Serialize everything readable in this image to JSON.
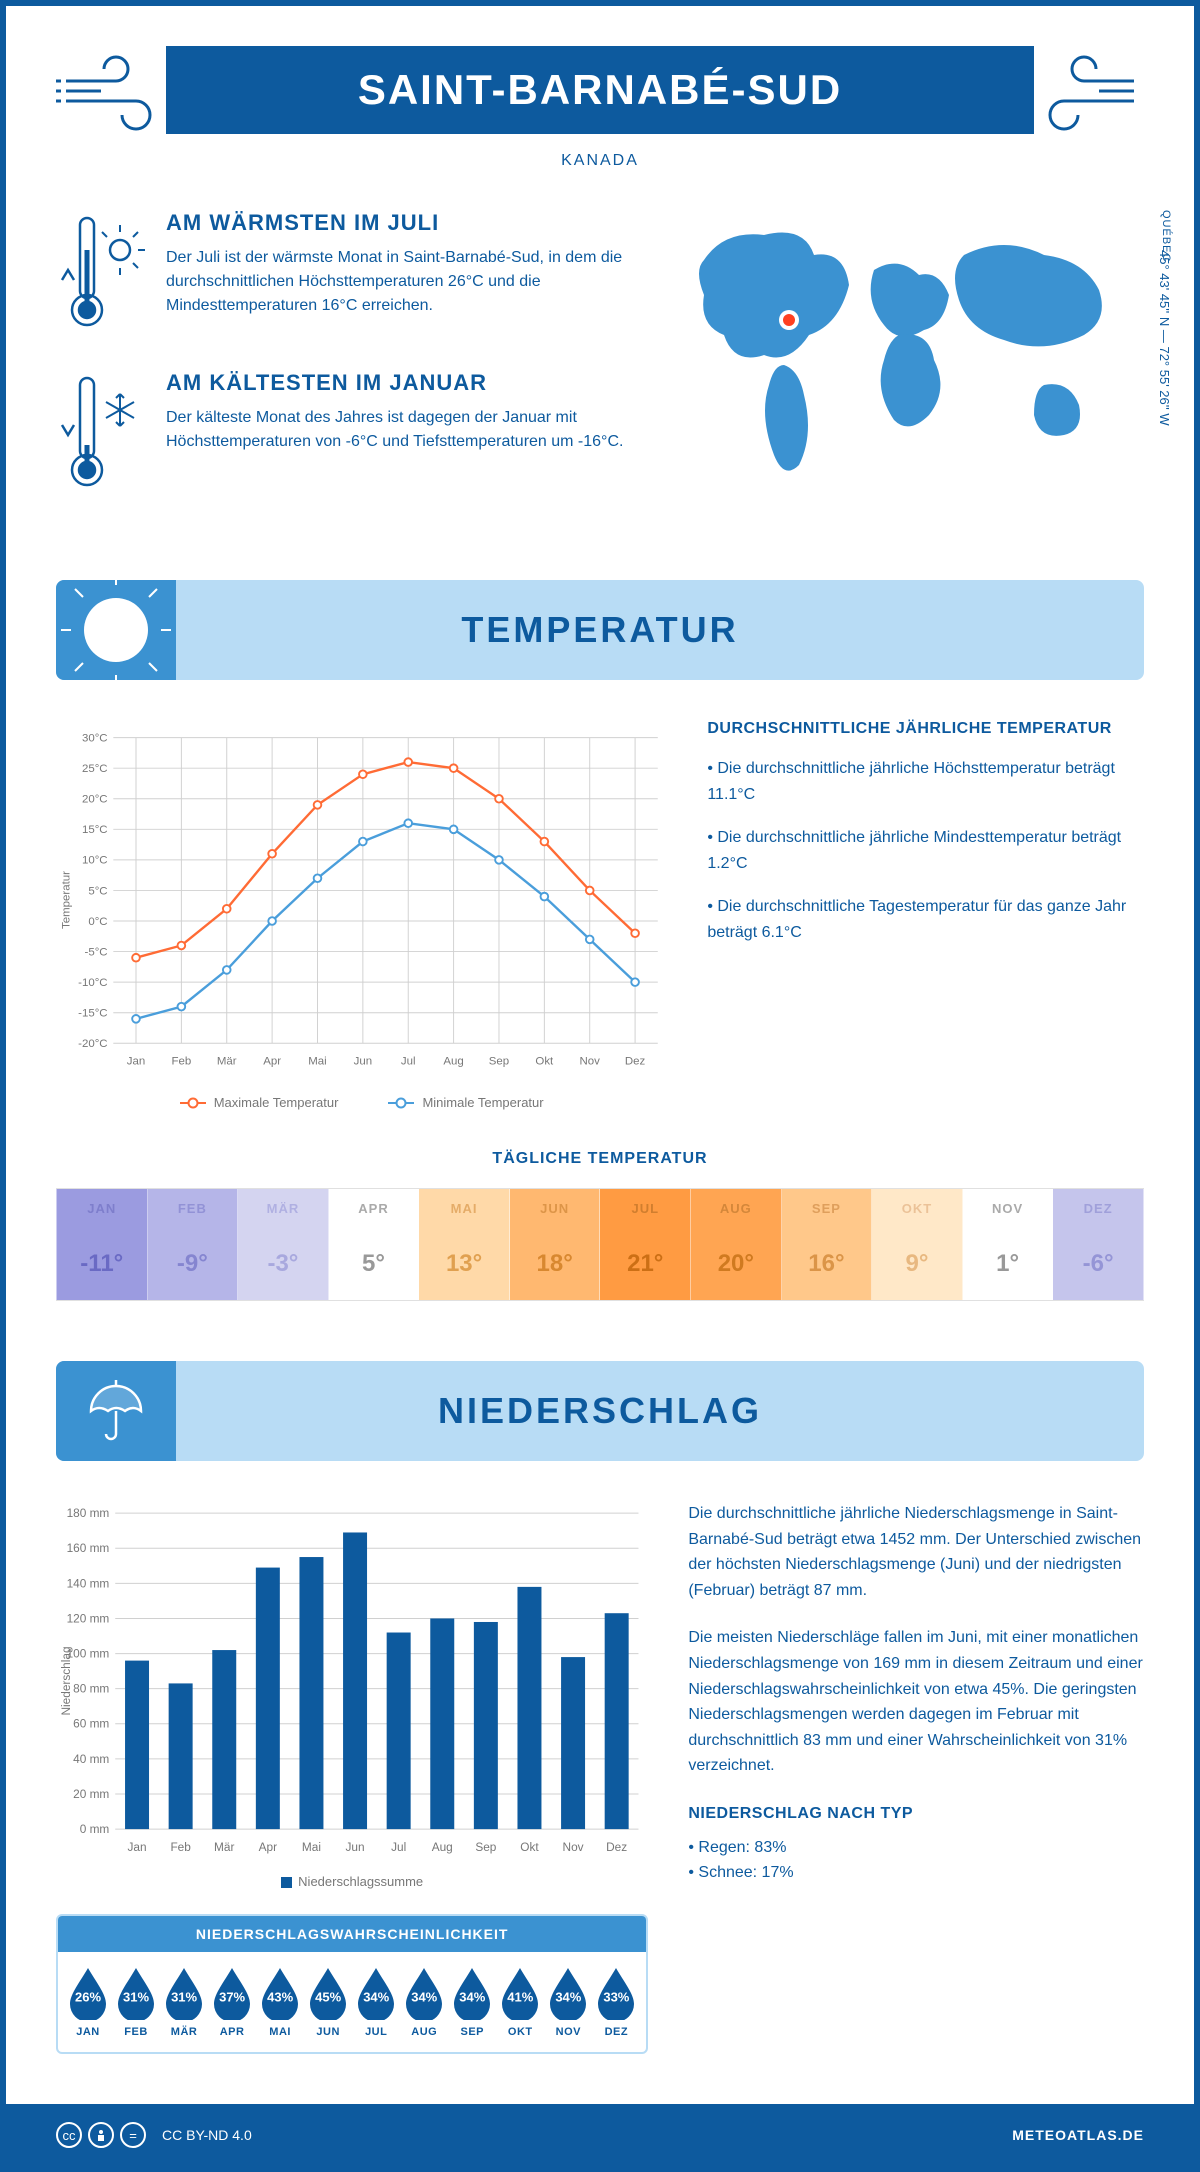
{
  "header": {
    "title": "SAINT-BARNABÉ-SUD",
    "country": "KANADA",
    "region": "QUÉBEC",
    "coords": "45° 43' 45'' N — 72° 55' 26'' W"
  },
  "intro": {
    "warm": {
      "heading": "AM WÄRMSTEN IM JULI",
      "body": "Der Juli ist der wärmste Monat in Saint-Barnabé-Sud, in dem die durchschnittlichen Höchsttemperaturen 26°C und die Mindesttemperaturen 16°C erreichen."
    },
    "cold": {
      "heading": "AM KÄLTESTEN IM JANUAR",
      "body": "Der kälteste Monat des Jahres ist dagegen der Januar mit Höchsttemperaturen von -6°C und Tiefsttemperaturen um -16°C."
    }
  },
  "months": [
    "Jan",
    "Feb",
    "Mär",
    "Apr",
    "Mai",
    "Jun",
    "Jul",
    "Aug",
    "Sep",
    "Okt",
    "Nov",
    "Dez"
  ],
  "months_upper": [
    "JAN",
    "FEB",
    "MÄR",
    "APR",
    "MAI",
    "JUN",
    "JUL",
    "AUG",
    "SEP",
    "OKT",
    "NOV",
    "DEZ"
  ],
  "temperature": {
    "section_title": "TEMPERATUR",
    "chart": {
      "type": "line",
      "ylabel": "Temperatur",
      "ylim": [
        -20,
        30
      ],
      "ytick_step": 5,
      "y_unit": "°C",
      "grid_color": "#d0d0d0",
      "background_color": "#ffffff",
      "series": {
        "max": {
          "label": "Maximale Temperatur",
          "color": "#ff6b35",
          "values": [
            -6,
            -4,
            2,
            11,
            19,
            24,
            26,
            25,
            20,
            13,
            5,
            -2
          ]
        },
        "min": {
          "label": "Minimale Temperatur",
          "color": "#4a9edb",
          "values": [
            -16,
            -14,
            -8,
            0,
            7,
            13,
            16,
            15,
            10,
            4,
            -3,
            -10
          ]
        }
      },
      "marker": "circle",
      "line_width": 2.5
    },
    "side": {
      "heading": "DURCHSCHNITTLICHE JÄHRLICHE TEMPERATUR",
      "bullets": [
        "• Die durchschnittliche jährliche Höchsttemperatur beträgt 11.1°C",
        "• Die durchschnittliche jährliche Mindesttemperatur beträgt 1.2°C",
        "• Die durchschnittliche Tagestemperatur für das ganze Jahr beträgt 6.1°C"
      ]
    },
    "daily": {
      "heading": "TÄGLICHE TEMPERATUR",
      "values": [
        -11,
        -9,
        -3,
        5,
        13,
        18,
        21,
        20,
        16,
        9,
        1,
        -6
      ],
      "bg_colors": [
        "#9b9be0",
        "#b5b5e8",
        "#d4d4f0",
        "#ffffff",
        "#ffd9a8",
        "#ffb870",
        "#ff9b42",
        "#ffa552",
        "#ffc88a",
        "#ffe8c8",
        "#ffffff",
        "#c5c5ec"
      ],
      "text_colors": [
        "#6a6ac4",
        "#8585d0",
        "#a8a8de",
        "#999999",
        "#e0a050",
        "#d88830",
        "#cc6f15",
        "#d07a20",
        "#db9548",
        "#e8b880",
        "#999999",
        "#9595d6"
      ],
      "header_text_colors": [
        "#7e7ecc",
        "#9292d6",
        "#b0b0e2",
        "#aaaaaa",
        "#e5ac68",
        "#dd9548",
        "#d17e2e",
        "#d4873a",
        "#df9f5c",
        "#ebc298",
        "#aaaaaa",
        "#a0a0da"
      ]
    }
  },
  "precipitation": {
    "section_title": "NIEDERSCHLAG",
    "chart": {
      "type": "bar",
      "ylabel": "Niederschlag",
      "ylim": [
        0,
        180
      ],
      "ytick_step": 20,
      "y_unit": " mm",
      "bar_color": "#0d5a9e",
      "grid_color": "#d0d0d0",
      "bar_width": 0.55,
      "values": [
        96,
        83,
        102,
        149,
        155,
        169,
        112,
        120,
        118,
        138,
        98,
        123
      ],
      "legend_label": "Niederschlagssumme"
    },
    "text": {
      "p1": "Die durchschnittliche jährliche Niederschlagsmenge in Saint-Barnabé-Sud beträgt etwa 1452 mm. Der Unterschied zwischen der höchsten Niederschlagsmenge (Juni) und der niedrigsten (Februar) beträgt 87 mm.",
      "p2": "Die meisten Niederschläge fallen im Juni, mit einer monatlichen Niederschlagsmenge von 169 mm in diesem Zeitraum und einer Niederschlagswahrscheinlichkeit von etwa 45%. Die geringsten Niederschlagsmengen werden dagegen im Februar mit durchschnittlich 83 mm und einer Wahrscheinlichkeit von 31% verzeichnet.",
      "type_heading": "NIEDERSCHLAG NACH TYP",
      "rain": "• Regen: 83%",
      "snow": "• Schnee: 17%"
    },
    "probability": {
      "heading": "NIEDERSCHLAGSWAHRSCHEINLICHKEIT",
      "values": [
        26,
        31,
        31,
        37,
        43,
        45,
        34,
        34,
        34,
        41,
        34,
        33
      ],
      "drop_color": "#0d5a9e"
    }
  },
  "footer": {
    "license": "CC BY-ND 4.0",
    "brand": "METEOATLAS.DE"
  }
}
